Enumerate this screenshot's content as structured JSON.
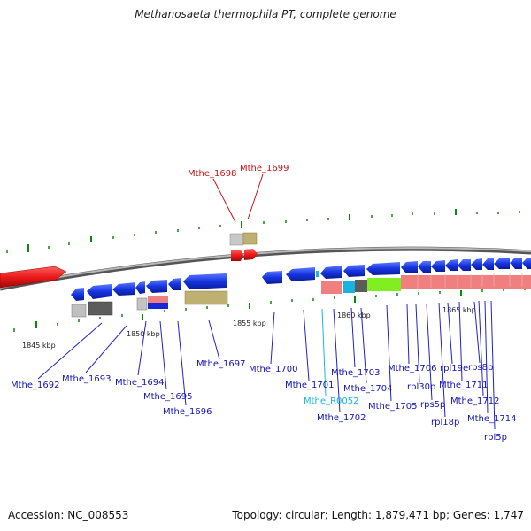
{
  "title": "Methanosaeta thermophila PT, complete genome",
  "footer": {
    "accession": "Accession: NC_008553",
    "topology": "Topology: circular; Length: 1,879,471 bp; Genes: 1,747"
  },
  "colors": {
    "forward_gene": "#e8141a",
    "reverse_gene": "#1230d8",
    "rna_label": "#18b8d8",
    "forward_label": "#c81414",
    "reverse_label": "#1414b4",
    "tick": "#0a8a0a",
    "backbone": "#8a8a8a"
  },
  "scale_labels": [
    "1845 kbp",
    "1850 kbp",
    "1855 kbp",
    "1860 kbp",
    "1865 kbp"
  ],
  "forward_labels": [
    "Mthe_1698",
    "Mthe_1699"
  ],
  "reverse_labels": [
    "Mthe_1692",
    "Mthe_1693",
    "Mthe_1694",
    "Mthe_1695",
    "Mthe_1696",
    "Mthe_1697",
    "Mthe_1700",
    "Mthe_1701",
    "Mthe_1703",
    "Mthe_1704",
    "Mthe_1702",
    "Mthe_1705",
    "Mthe_1706",
    "rpl30p",
    "rps5p",
    "rpl18p",
    "rpl19e",
    "Mthe_1711",
    "rps8p",
    "Mthe_1712",
    "Mthe_1714",
    "rpl5p"
  ],
  "rna_labels": [
    "Mthe_R0052"
  ]
}
